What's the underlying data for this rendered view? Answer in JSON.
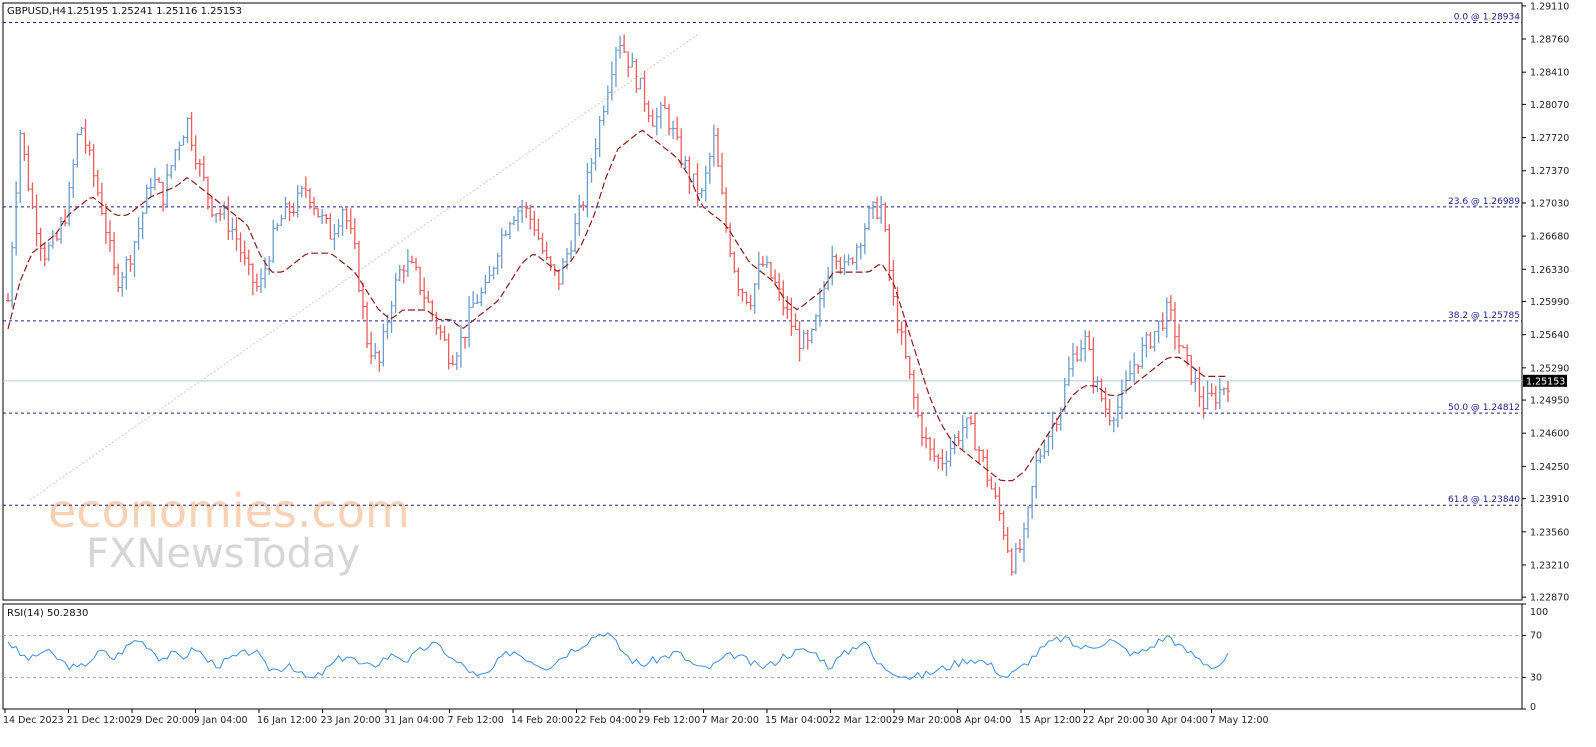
{
  "header": {
    "symbol": "GBPUSD,H4",
    "ohlc": "1.25195 1.25241 1.25116 1.25153"
  },
  "watermark": {
    "line1": "economies.com",
    "line2": "FXNewsToday"
  },
  "colors": {
    "bull": "#6a9cc9",
    "bear": "#ef5a5a",
    "ma": "#8b1a1a",
    "fib": "#1b1b8a",
    "rsi": "#3a8ee6",
    "grid_text": "#222222",
    "current_price_line": "#b4cbe0"
  },
  "chart_data": {
    "type": "candlestick",
    "price_axis": {
      "ticks": [
        "1.29110",
        "1.28760",
        "1.28410",
        "1.28070",
        "1.27720",
        "1.27370",
        "1.27030",
        "1.26680",
        "1.26330",
        "1.25990",
        "1.25640",
        "1.25290",
        "1.24950",
        "1.24600",
        "1.24250",
        "1.23910",
        "1.23560",
        "1.23210",
        "1.22870"
      ],
      "ylim": [
        1.2284,
        1.2914
      ]
    },
    "time_axis": {
      "labels": [
        "14 Dec 2023",
        "21 Dec 12:00",
        "29 Dec 20:00",
        "9 Jan 04:00",
        "16 Jan 12:00",
        "23 Jan 20:00",
        "31 Jan 04:00",
        "7 Feb 12:00",
        "14 Feb 20:00",
        "22 Feb 04:00",
        "29 Feb 12:00",
        "7 Mar 20:00",
        "15 Mar 04:00",
        "22 Mar 12:00",
        "29 Mar 20:00",
        "8 Apr 04:00",
        "15 Apr 12:00",
        "22 Apr 20:00",
        "30 Apr 04:00",
        "7 May 12:00"
      ]
    },
    "current_price": {
      "value": 1.25153,
      "label": "1.25153"
    },
    "fib_levels": [
      {
        "label": "0.0 @ 1.28934",
        "value": 1.28934
      },
      {
        "label": "23.6 @ 1.26989",
        "value": 1.26989
      },
      {
        "label": "38.2 @ 1.25785",
        "value": 1.25785
      },
      {
        "label": "50.0 @ 1.24812",
        "value": 1.24812
      },
      {
        "label": "61.8 @ 1.23840",
        "value": 1.2384
      }
    ],
    "close_path": [
      1.26,
      1.278,
      1.27,
      1.265,
      1.266,
      1.27,
      1.279,
      1.274,
      1.269,
      1.262,
      1.264,
      1.268,
      1.273,
      1.271,
      1.276,
      1.279,
      1.274,
      1.27,
      1.269,
      1.267,
      1.263,
      1.261,
      1.266,
      1.269,
      1.27,
      1.272,
      1.269,
      1.267,
      1.27,
      1.265,
      1.256,
      1.253,
      1.26,
      1.264,
      1.263,
      1.26,
      1.257,
      1.254,
      1.256,
      1.26,
      1.261,
      1.266,
      1.269,
      1.27,
      1.268,
      1.264,
      1.262,
      1.266,
      1.27,
      1.276,
      1.282,
      1.288,
      1.285,
      1.282,
      1.279,
      1.28,
      1.276,
      1.273,
      1.271,
      1.277,
      1.268,
      1.262,
      1.26,
      1.264,
      1.262,
      1.259,
      1.256,
      1.255,
      1.26,
      1.266,
      1.263,
      1.266,
      1.269,
      1.27,
      1.26,
      1.254,
      1.248,
      1.244,
      1.243,
      1.245,
      1.247,
      1.245,
      1.241,
      1.237,
      1.232,
      1.235,
      1.243,
      1.246,
      1.249,
      1.254,
      1.256,
      1.251,
      1.248,
      1.249,
      1.253,
      1.255,
      1.257,
      1.259,
      1.255,
      1.252,
      1.249,
      1.25,
      1.2515
    ],
    "ma_path": [
      1.257,
      1.262,
      1.265,
      1.266,
      1.267,
      1.269,
      1.27,
      1.271,
      1.27,
      1.269,
      1.269,
      1.27,
      1.271,
      1.2715,
      1.272,
      1.273,
      1.272,
      1.271,
      1.27,
      1.269,
      1.268,
      1.265,
      1.263,
      1.263,
      1.264,
      1.265,
      1.265,
      1.265,
      1.264,
      1.263,
      1.261,
      1.259,
      1.258,
      1.259,
      1.259,
      1.259,
      1.258,
      1.258,
      1.257,
      1.258,
      1.259,
      1.26,
      1.262,
      1.264,
      1.265,
      1.264,
      1.263,
      1.264,
      1.266,
      1.269,
      1.273,
      1.276,
      1.277,
      1.278,
      1.277,
      1.276,
      1.275,
      1.273,
      1.27,
      1.269,
      1.268,
      1.266,
      1.264,
      1.263,
      1.262,
      1.26,
      1.259,
      1.26,
      1.261,
      1.263,
      1.263,
      1.263,
      1.263,
      1.264,
      1.262,
      1.258,
      1.254,
      1.25,
      1.247,
      1.245,
      1.244,
      1.243,
      1.242,
      1.241,
      1.241,
      1.242,
      1.244,
      1.246,
      1.248,
      1.25,
      1.251,
      1.251,
      1.25,
      1.25,
      1.251,
      1.252,
      1.253,
      1.254,
      1.254,
      1.253,
      1.252,
      1.252,
      1.252
    ],
    "rsi": {
      "label": "RSI(14) 50.2830",
      "ticks": [
        "100",
        "70",
        "30",
        "0"
      ],
      "levels": [
        70,
        30
      ],
      "values": [
        65,
        52,
        47,
        56,
        50,
        42,
        38,
        47,
        55,
        48,
        58,
        67,
        60,
        48,
        52,
        50,
        58,
        46,
        42,
        48,
        52,
        56,
        40,
        37,
        44,
        32,
        28,
        36,
        46,
        52,
        42,
        40,
        48,
        52,
        46,
        54,
        62,
        58,
        46,
        40,
        30,
        34,
        48,
        56,
        50,
        44,
        40,
        48,
        56,
        62,
        70,
        74,
        60,
        48,
        42,
        46,
        50,
        54,
        46,
        38,
        40,
        48,
        52,
        46,
        40,
        42,
        50,
        54,
        56,
        52,
        40,
        50,
        58,
        66,
        44,
        38,
        34,
        30,
        32,
        36,
        40,
        44,
        48,
        46,
        40,
        30,
        36,
        46,
        56,
        64,
        68,
        60,
        58,
        62,
        66,
        58,
        52,
        56,
        64,
        70,
        58,
        52,
        44,
        40,
        50
      ]
    }
  }
}
